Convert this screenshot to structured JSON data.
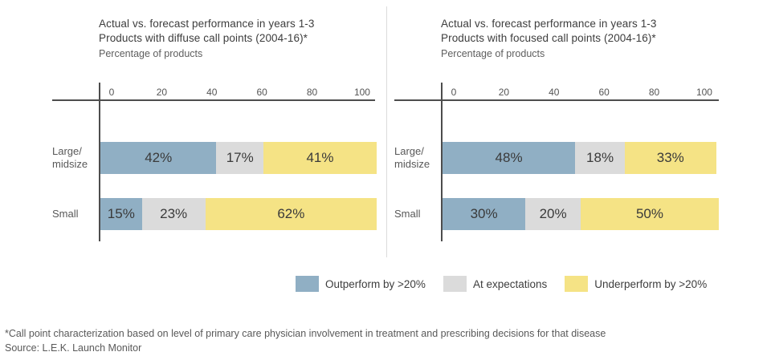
{
  "colors": {
    "outperform_blue": "#90AFC4",
    "at_expectations_gray": "#DBDBDB",
    "underperform_yellow": "#F5E385",
    "axis_line": "#4D4D4D",
    "divider_gray": "#DCDCDC",
    "title_text": "#3D3D3D",
    "muted_text": "#595959"
  },
  "chart_data": [
    {
      "type": "bar",
      "orientation": "horizontal",
      "stacked": true,
      "title_lines": [
        "Actual vs. forecast performance in years 1-3",
        "Products with diffuse call points (2004-16)*"
      ],
      "subtitle": "Percentage of products",
      "categories": [
        "Large/midsize",
        "Small"
      ],
      "category_lines": [
        [
          "Large/",
          "midsize"
        ],
        [
          "Small"
        ]
      ],
      "xlim": [
        0,
        100
      ],
      "x_ticks": [
        0,
        20,
        40,
        60,
        80,
        100
      ],
      "x_tick_labels": [
        "0",
        "20",
        "40",
        "60",
        "80",
        "100"
      ],
      "grid": false,
      "series": [
        {
          "name": "Outperform by >20%",
          "color": "#90AFC4",
          "values": [
            42,
            15
          ]
        },
        {
          "name": "At expectations",
          "color": "#DBDBDB",
          "values": [
            17,
            23
          ]
        },
        {
          "name": "Underperform by >20%",
          "color": "#F5E385",
          "values": [
            41,
            62
          ]
        }
      ],
      "data_labels": [
        [
          "42%",
          "17%",
          "41%"
        ],
        [
          "15%",
          "23%",
          "62%"
        ]
      ]
    },
    {
      "type": "bar",
      "orientation": "horizontal",
      "stacked": true,
      "title_lines": [
        "Actual vs. forecast performance in years 1-3",
        "Products with focused call points (2004-16)*"
      ],
      "subtitle": "Percentage of products",
      "categories": [
        "Large/midsize",
        "Small"
      ],
      "category_lines": [
        [
          "Large/",
          "midsize"
        ],
        [
          "Small"
        ]
      ],
      "xlim": [
        0,
        100
      ],
      "x_ticks": [
        0,
        20,
        40,
        60,
        80,
        100
      ],
      "x_tick_labels": [
        "0",
        "20",
        "40",
        "60",
        "80",
        "100"
      ],
      "grid": false,
      "series": [
        {
          "name": "Outperform by >20%",
          "color": "#90AFC4",
          "values": [
            48,
            30
          ]
        },
        {
          "name": "At expectations",
          "color": "#DBDBDB",
          "values": [
            18,
            20
          ]
        },
        {
          "name": "Underperform by >20%",
          "color": "#F5E385",
          "values": [
            33,
            50
          ]
        }
      ],
      "data_labels": [
        [
          "48%",
          "18%",
          "33%"
        ],
        [
          "30%",
          "20%",
          "50%"
        ]
      ]
    }
  ],
  "legend": {
    "position": "bottom",
    "items": [
      {
        "label": "Outperform by >20%",
        "color": "#90AFC4"
      },
      {
        "label": "At expectations",
        "color": "#DBDBDB"
      },
      {
        "label": "Underperform by >20%",
        "color": "#F5E385"
      }
    ]
  },
  "footnote": "*Call point characterization based on level of primary care physician involvement in treatment and prescribing decisions for that disease",
  "source": "Source: L.E.K. Launch Monitor"
}
